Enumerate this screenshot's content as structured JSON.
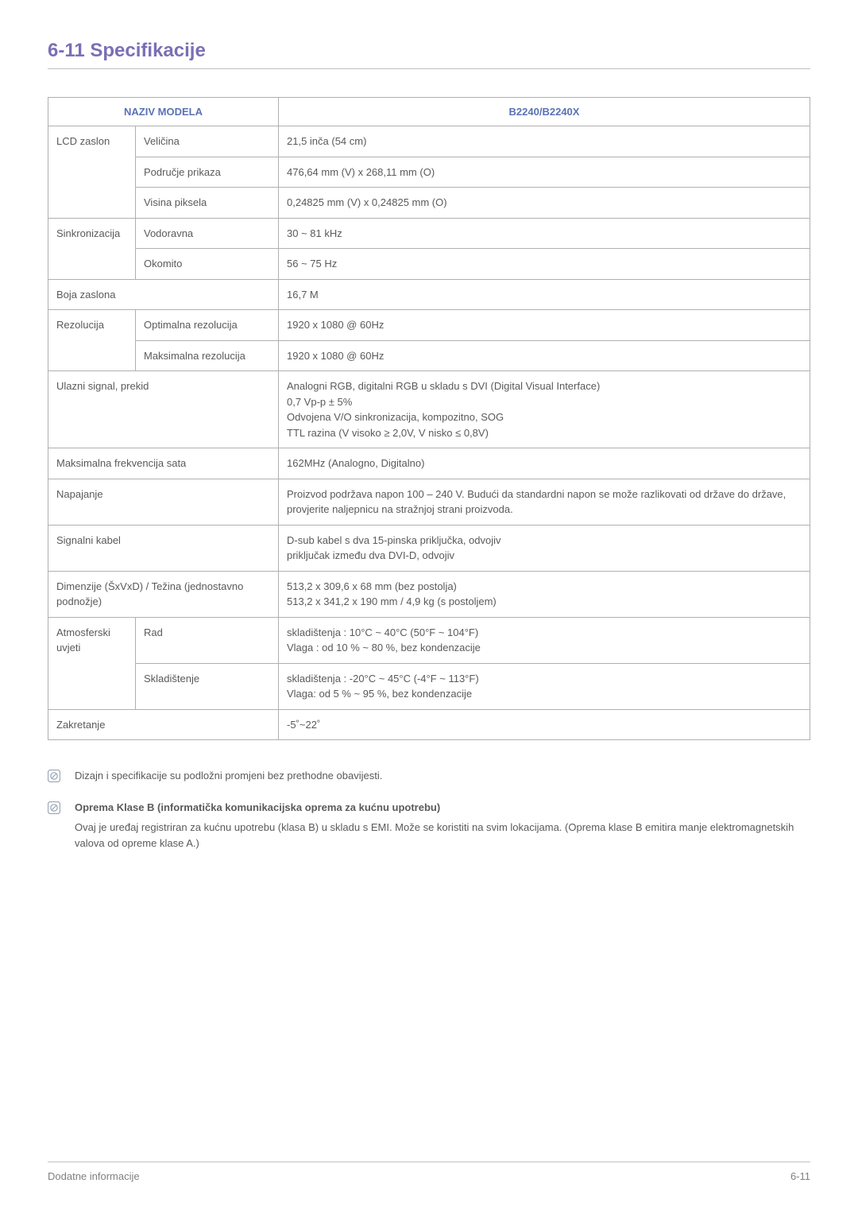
{
  "title": "6-11  Specifikacije",
  "table": {
    "header_left": "NAZIV MODELA",
    "header_right": "B2240/B2240X",
    "header_color": "#5a72b5",
    "border_color": "#b0b0b0",
    "rows": [
      {
        "a": "LCD zaslon",
        "b": "Veličina",
        "c": "21,5 inča (54 cm)",
        "a_rowspan": 3
      },
      {
        "b": "Područje prikaza",
        "c": "476,64 mm (V) x 268,11 mm (O)"
      },
      {
        "b": "Visina piksela",
        "c": "0,24825 mm (V) x 0,24825 mm (O)"
      },
      {
        "a": "Sinkronizacija",
        "b": "Vodoravna",
        "c": "30 ~ 81 kHz",
        "a_rowspan": 2
      },
      {
        "b": "Okomito",
        "c": "56 ~ 75 Hz"
      },
      {
        "ab": "Boja zaslona",
        "c": "16,7 M"
      },
      {
        "a": "Rezolucija",
        "b": "Optimalna rezolucija",
        "c": "1920 x 1080 @ 60Hz",
        "a_rowspan": 2
      },
      {
        "b": "Maksimalna rezolucija",
        "c": "1920 x 1080 @ 60Hz"
      },
      {
        "ab": "Ulazni signal, prekid",
        "c_lines": [
          "Analogni RGB, digitalni RGB u skladu s DVI (Digital Visual Interface)",
          "0,7 Vp-p ± 5%",
          "Odvojena V/O sinkronizacija, kompozitno, SOG",
          "TTL razina (V visoko ≥ 2,0V, V nisko ≤ 0,8V)"
        ]
      },
      {
        "ab": "Maksimalna frekvencija sata",
        "c": "162MHz (Analogno, Digitalno)"
      },
      {
        "ab": "Napajanje",
        "c": "Proizvod podržava napon 100 – 240 V. Budući da standardni napon se može razlikovati od države do države, provjerite naljepnicu na stražnjoj strani proizvoda."
      },
      {
        "ab": "Signalni kabel",
        "c_lines": [
          "D-sub kabel s dva 15-pinska priključka, odvojiv",
          "priključak između dva DVI-D, odvojiv"
        ]
      },
      {
        "ab": "Dimenzije (ŠxVxD) / Težina (jednostavno podnožje)",
        "c_lines": [
          "513,2 x 309,6 x 68 mm (bez postolja)",
          "513,2 x 341,2 x 190 mm / 4,9 kg (s postoljem)"
        ]
      },
      {
        "a": "Atmosferski uvjeti",
        "b": "Rad",
        "c_lines": [
          "skladištenja : 10°C ~ 40°C (50°F ~ 104°F)",
          "Vlaga : od 10 % ~ 80 %, bez kondenzacije"
        ],
        "a_rowspan": 2
      },
      {
        "b": "Skladištenje",
        "c_lines": [
          "skladištenja : -20°C ~ 45°C (-4°F ~ 113°F)",
          "Vlaga: od 5 % ~ 95 %, bez kondenzacije"
        ]
      },
      {
        "ab": "Zakretanje",
        "c": "-5˚~22˚"
      }
    ]
  },
  "notes": [
    {
      "text": "Dizajn i specifikacije su podložni promjeni bez prethodne obavijesti."
    },
    {
      "bold": "Oprema Klase B (informatička komunikacijska oprema za kućnu upotrebu)",
      "text": "Ovaj je uređaj registriran za kućnu upotrebu (klasa B) u skladu s EMI. Može se koristiti na svim lokacijama. (Oprema klase B emitira manje elektromagnetskih valova od opreme klase A.)"
    }
  ],
  "footer": {
    "left": "Dodatne informacije",
    "right": "6-11"
  },
  "icon_color": "#9aa4b5",
  "title_color": "#7a6fb5"
}
